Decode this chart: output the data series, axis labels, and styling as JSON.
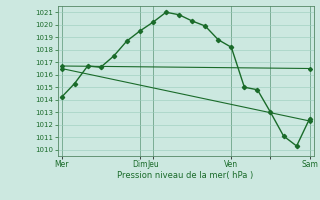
{
  "xlabel": "Pression niveau de la mer( hPa )",
  "ylim": [
    1009.5,
    1021.5
  ],
  "bg_color": "#cce8e0",
  "grid_color_major": "#99ccbb",
  "grid_color_minor": "#b8ddd4",
  "line_color": "#1a6b2a",
  "line1_x": [
    0,
    1,
    2,
    3,
    4,
    5,
    6,
    7,
    8,
    9,
    10,
    11,
    12,
    13,
    14,
    15,
    16,
    17,
    18,
    19
  ],
  "line1_y": [
    1014.2,
    1015.3,
    1016.7,
    1016.6,
    1017.5,
    1018.7,
    1019.5,
    1020.2,
    1021.0,
    1020.8,
    1020.3,
    1019.9,
    1018.8,
    1018.2,
    1015.0,
    1014.8,
    1013.0,
    1011.1,
    1010.3,
    1012.5
  ],
  "line2_x": [
    0,
    19
  ],
  "line2_y": [
    1016.7,
    1016.5
  ],
  "line3_x": [
    0,
    19
  ],
  "line3_y": [
    1016.5,
    1012.3
  ],
  "xtick_positions": [
    0,
    6,
    7,
    13,
    16,
    19
  ],
  "xtick_labels": [
    "Mer",
    "Dim",
    "Jeu",
    "Ven",
    "",
    "Sam"
  ],
  "xlim": [
    -0.3,
    19.3
  ]
}
